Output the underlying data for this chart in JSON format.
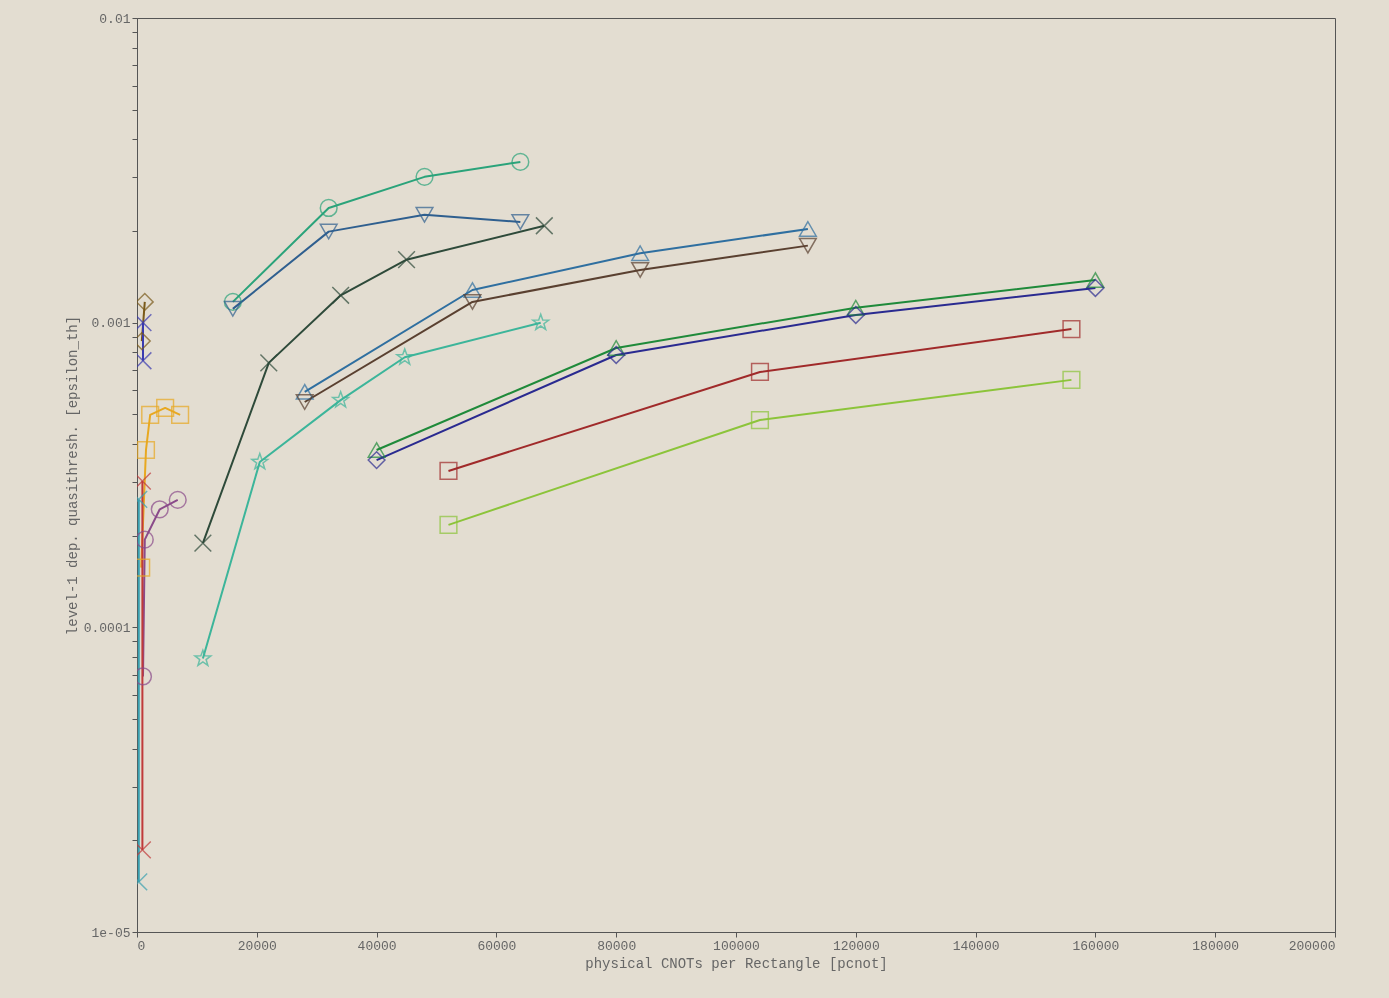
{
  "chart_data": {
    "type": "line",
    "xlabel": "physical CNOTs per Rectangle [pcnot]",
    "ylabel": "level-1 dep. quasithresh. [epsilon_th]",
    "xlim": [
      0,
      200000
    ],
    "xticks": [
      0,
      20000,
      40000,
      60000,
      80000,
      100000,
      120000,
      140000,
      160000,
      180000,
      200000
    ],
    "ylim": [
      1e-05,
      0.01
    ],
    "log": true,
    "grid": false,
    "yticks": [
      {
        "value": 1e-05,
        "label": "1e-05"
      },
      {
        "value": 2e-05,
        "label": null
      },
      {
        "value": 3e-05,
        "label": null
      },
      {
        "value": 4e-05,
        "label": null
      },
      {
        "value": 5e-05,
        "label": null
      },
      {
        "value": 6e-05,
        "label": null
      },
      {
        "value": 7e-05,
        "label": null
      },
      {
        "value": 8e-05,
        "label": null
      },
      {
        "value": 9e-05,
        "label": null
      },
      {
        "value": 0.0001,
        "label": "0.0001"
      },
      {
        "value": 0.0002,
        "label": null
      },
      {
        "value": 0.0003,
        "label": null
      },
      {
        "value": 0.0004,
        "label": null
      },
      {
        "value": 0.0005,
        "label": null
      },
      {
        "value": 0.0006,
        "label": null
      },
      {
        "value": 0.0007,
        "label": null
      },
      {
        "value": 0.0008,
        "label": null
      },
      {
        "value": 0.0009,
        "label": null
      },
      {
        "value": 0.001,
        "label": "0.001"
      },
      {
        "value": 0.002,
        "label": null
      },
      {
        "value": 0.003,
        "label": null
      },
      {
        "value": 0.004,
        "label": null
      },
      {
        "value": 0.005,
        "label": null
      },
      {
        "value": 0.006,
        "label": null
      },
      {
        "value": 0.007,
        "label": null
      },
      {
        "value": 0.008,
        "label": null
      },
      {
        "value": 0.009,
        "label": null
      },
      {
        "value": 0.01,
        "label": "0.01"
      }
    ],
    "series": [
      {
        "color": "#2aa37a",
        "marker": "circle",
        "x": [
          16000,
          32000,
          48000,
          64000
        ],
        "values": [
          0.00117,
          0.00238,
          0.00301,
          0.00337
        ]
      },
      {
        "color": "#2f5f8f",
        "marker": "triangle-down",
        "x": [
          16000,
          32000,
          48000,
          64000
        ],
        "values": [
          0.00111,
          0.00199,
          0.00226,
          0.00214
        ]
      },
      {
        "color": "#2e4a3a",
        "marker": "cross",
        "x": [
          11000,
          22000,
          34000,
          45000,
          68000
        ],
        "values": [
          0.000189,
          0.000738,
          0.00123,
          0.00161,
          0.00208
        ]
      },
      {
        "color": "#2f6fa0",
        "marker": "triangle",
        "x": [
          28000,
          56000,
          84000,
          112000
        ],
        "values": [
          0.000593,
          0.00128,
          0.00169,
          0.00203
        ]
      },
      {
        "color": "#5a4030",
        "marker": "triangle-down",
        "x": [
          28000,
          56000,
          84000,
          112000
        ],
        "values": [
          0.000549,
          0.00117,
          0.00149,
          0.00179
        ]
      },
      {
        "color": "#3cb59a",
        "marker": "star",
        "x": [
          11000,
          20500,
          34000,
          44700,
          67400
        ],
        "values": [
          7.9e-05,
          0.000349,
          0.000557,
          0.00077,
          0.001
        ]
      },
      {
        "color": "#1f8a3a",
        "marker": "triangle",
        "x": [
          40000,
          80000,
          120000,
          160000
        ],
        "values": [
          0.000382,
          0.000826,
          0.00112,
          0.00138
        ]
      },
      {
        "color": "#2a2a90",
        "marker": "diamond",
        "x": [
          40000,
          80000,
          120000,
          160000
        ],
        "values": [
          0.000354,
          0.000783,
          0.00106,
          0.0013
        ]
      },
      {
        "color": "#a02a2a",
        "marker": "square",
        "x": [
          52000,
          104000,
          156000
        ],
        "values": [
          0.000326,
          0.000689,
          0.000953
        ]
      },
      {
        "color": "#8cc43a",
        "marker": "square",
        "x": [
          52000,
          104000,
          156000
        ],
        "values": [
          0.000217,
          0.000479,
          0.000649
        ]
      },
      {
        "color": "#7a5a1a",
        "marker": "diamond",
        "x": [
          800,
          1300
        ],
        "values": [
          0.00087,
          0.00117
        ]
      },
      {
        "color": "#e8a820",
        "marker": "square",
        "x": [
          700,
          1500,
          2200,
          4700,
          7200
        ],
        "values": [
          0.000157,
          0.000382,
          0.000498,
          0.000525,
          0.000498
        ]
      },
      {
        "color": "#8a4a8a",
        "marker": "circle",
        "x": [
          1000,
          1300,
          3800,
          6800
        ],
        "values": [
          6.9e-05,
          0.000194,
          0.000244,
          0.000262
        ]
      },
      {
        "color": "#3aa0b0",
        "marker": "cross",
        "x": [
          300,
          300
        ],
        "values": [
          1.46e-05,
          0.000263
        ]
      },
      {
        "color": "#c03a3a",
        "marker": "cross",
        "x": [
          900,
          900
        ],
        "values": [
          1.86e-05,
          0.000302
        ]
      },
      {
        "color": "#3a3ab0",
        "marker": "cross",
        "x": [
          1000,
          1000
        ],
        "values": [
          0.00075,
          0.001
        ]
      }
    ]
  }
}
